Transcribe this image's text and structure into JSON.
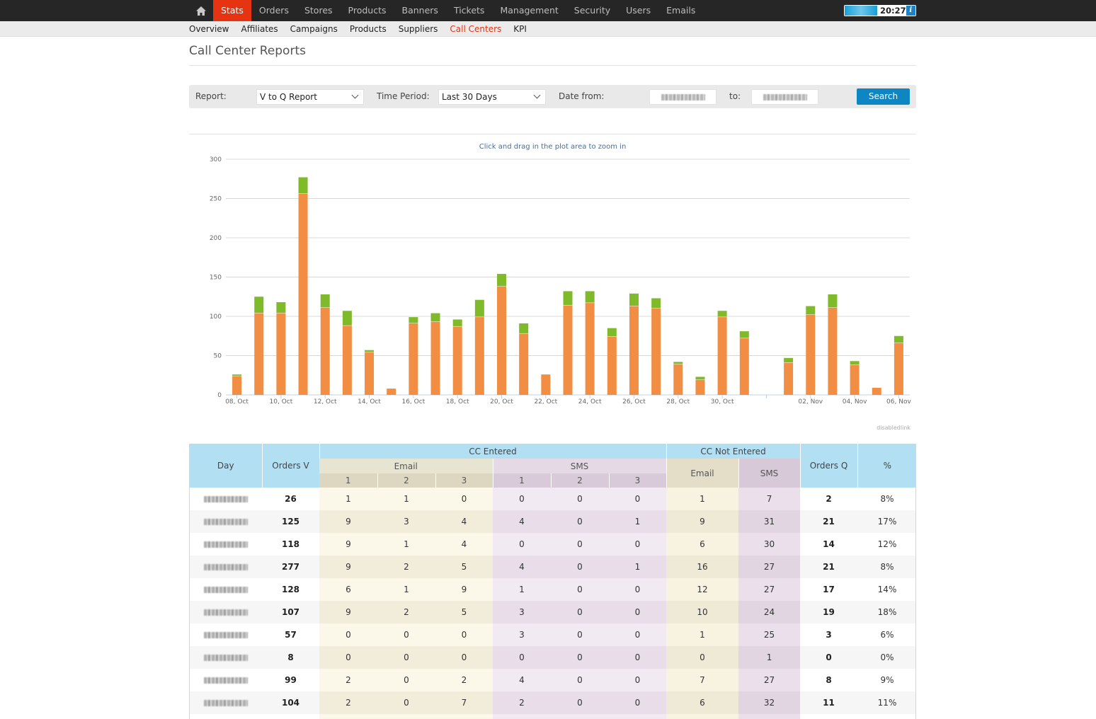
{
  "nav": {
    "items": [
      {
        "label": "Stats",
        "active": true
      },
      {
        "label": "Orders"
      },
      {
        "label": "Stores"
      },
      {
        "label": "Products"
      },
      {
        "label": "Banners"
      },
      {
        "label": "Tickets"
      },
      {
        "label": "Management"
      },
      {
        "label": "Security"
      },
      {
        "label": "Users"
      },
      {
        "label": "Emails"
      }
    ],
    "clock": "20:27",
    "info_label": "i"
  },
  "subnav": {
    "items": [
      {
        "label": "Overview"
      },
      {
        "label": "Affiliates"
      },
      {
        "label": "Campaigns"
      },
      {
        "label": "Products"
      },
      {
        "label": "Suppliers"
      },
      {
        "label": "Call Centers",
        "active": true
      },
      {
        "label": "KPI"
      }
    ]
  },
  "page": {
    "title": "Call Center Reports"
  },
  "filters": {
    "report_label": "Report:",
    "report_value": "V to Q Report",
    "period_label": "Time Period:",
    "period_value": "Last 30 Days",
    "date_from_label": "Date from:",
    "to_label": "to:",
    "search_label": "Search"
  },
  "chart_data": {
    "type": "bar",
    "stacked": true,
    "hint": "Click and drag in the plot area to zoom in",
    "credit": "disabledlink",
    "ylim": [
      0,
      300
    ],
    "yticks": [
      0,
      50,
      100,
      150,
      200,
      250,
      300
    ],
    "x_labels": [
      "08, Oct",
      "10, Oct",
      "12, Oct",
      "14, Oct",
      "16, Oct",
      "18, Oct",
      "20, Oct",
      "22, Oct",
      "24, Oct",
      "26, Oct",
      "28, Oct",
      "30, Oct",
      "",
      "02, Nov",
      "04, Nov",
      "06, Nov"
    ],
    "colors": {
      "base": "#f28e43",
      "top": "#7fba2a"
    },
    "bars": [
      {
        "base": 24,
        "top": 2
      },
      {
        "base": 104,
        "top": 21
      },
      {
        "base": 104,
        "top": 14
      },
      {
        "base": 256,
        "top": 21
      },
      {
        "base": 111,
        "top": 17
      },
      {
        "base": 88,
        "top": 19
      },
      {
        "base": 54,
        "top": 3
      },
      {
        "base": 8,
        "top": 0
      },
      {
        "base": 91,
        "top": 8
      },
      {
        "base": 93,
        "top": 11
      },
      {
        "base": 87,
        "top": 9
      },
      {
        "base": 99,
        "top": 22
      },
      {
        "base": 138,
        "top": 16
      },
      {
        "base": 78,
        "top": 13
      },
      {
        "base": 26,
        "top": 0
      },
      {
        "base": 114,
        "top": 18
      },
      {
        "base": 117,
        "top": 15
      },
      {
        "base": 74,
        "top": 11
      },
      {
        "base": 113,
        "top": 16
      },
      {
        "base": 110,
        "top": 13
      },
      {
        "base": 39,
        "top": 3
      },
      {
        "base": 19,
        "top": 4
      },
      {
        "base": 99,
        "top": 8
      },
      {
        "base": 72,
        "top": 9
      },
      {
        "base": 0,
        "top": 0
      },
      {
        "base": 41,
        "top": 6
      },
      {
        "base": 102,
        "top": 11
      },
      {
        "base": 111,
        "top": 17
      },
      {
        "base": 38,
        "top": 5
      },
      {
        "base": 9,
        "top": 0
      },
      {
        "base": 66,
        "top": 9
      }
    ]
  },
  "table": {
    "headers": {
      "day": "Day",
      "orders_v": "Orders V",
      "cc_entered": "CC Entered",
      "email": "Email",
      "sms": "SMS",
      "cc_not_entered": "CC Not Entered",
      "ne_email": "Email",
      "ne_sms": "SMS",
      "orders_q": "Orders Q",
      "pct": "%",
      "sub": [
        "1",
        "2",
        "3",
        "1",
        "2",
        "3"
      ]
    },
    "rows": [
      {
        "orders_v": "26",
        "e1": "1",
        "e2": "1",
        "e3": "0",
        "s1": "0",
        "s2": "0",
        "s3": "0",
        "ne_email": "1",
        "ne_sms": "7",
        "orders_q": "2",
        "pct": "8%"
      },
      {
        "orders_v": "125",
        "e1": "9",
        "e2": "3",
        "e3": "4",
        "s1": "4",
        "s2": "0",
        "s3": "1",
        "ne_email": "9",
        "ne_sms": "31",
        "orders_q": "21",
        "pct": "17%"
      },
      {
        "orders_v": "118",
        "e1": "9",
        "e2": "1",
        "e3": "4",
        "s1": "0",
        "s2": "0",
        "s3": "0",
        "ne_email": "6",
        "ne_sms": "30",
        "orders_q": "14",
        "pct": "12%"
      },
      {
        "orders_v": "277",
        "e1": "9",
        "e2": "2",
        "e3": "5",
        "s1": "4",
        "s2": "0",
        "s3": "1",
        "ne_email": "16",
        "ne_sms": "27",
        "orders_q": "21",
        "pct": "8%"
      },
      {
        "orders_v": "128",
        "e1": "6",
        "e2": "1",
        "e3": "9",
        "s1": "1",
        "s2": "0",
        "s3": "0",
        "ne_email": "12",
        "ne_sms": "27",
        "orders_q": "17",
        "pct": "14%"
      },
      {
        "orders_v": "107",
        "e1": "9",
        "e2": "2",
        "e3": "5",
        "s1": "3",
        "s2": "0",
        "s3": "0",
        "ne_email": "10",
        "ne_sms": "24",
        "orders_q": "19",
        "pct": "18%"
      },
      {
        "orders_v": "57",
        "e1": "0",
        "e2": "0",
        "e3": "0",
        "s1": "3",
        "s2": "0",
        "s3": "0",
        "ne_email": "1",
        "ne_sms": "25",
        "orders_q": "3",
        "pct": "6%"
      },
      {
        "orders_v": "8",
        "e1": "0",
        "e2": "0",
        "e3": "0",
        "s1": "0",
        "s2": "0",
        "s3": "0",
        "ne_email": "0",
        "ne_sms": "1",
        "orders_q": "0",
        "pct": "0%"
      },
      {
        "orders_v": "99",
        "e1": "2",
        "e2": "0",
        "e3": "2",
        "s1": "4",
        "s2": "0",
        "s3": "0",
        "ne_email": "7",
        "ne_sms": "27",
        "orders_q": "8",
        "pct": "9%"
      },
      {
        "orders_v": "104",
        "e1": "2",
        "e2": "0",
        "e3": "7",
        "s1": "2",
        "s2": "0",
        "s3": "0",
        "ne_email": "6",
        "ne_sms": "32",
        "orders_q": "11",
        "pct": "11%"
      },
      {
        "orders_v": "",
        "e1": "",
        "e2": "",
        "e3": "",
        "s1": "",
        "s2": "",
        "s3": "",
        "ne_email": "",
        "ne_sms": "",
        "orders_q": "",
        "pct": ""
      }
    ]
  }
}
